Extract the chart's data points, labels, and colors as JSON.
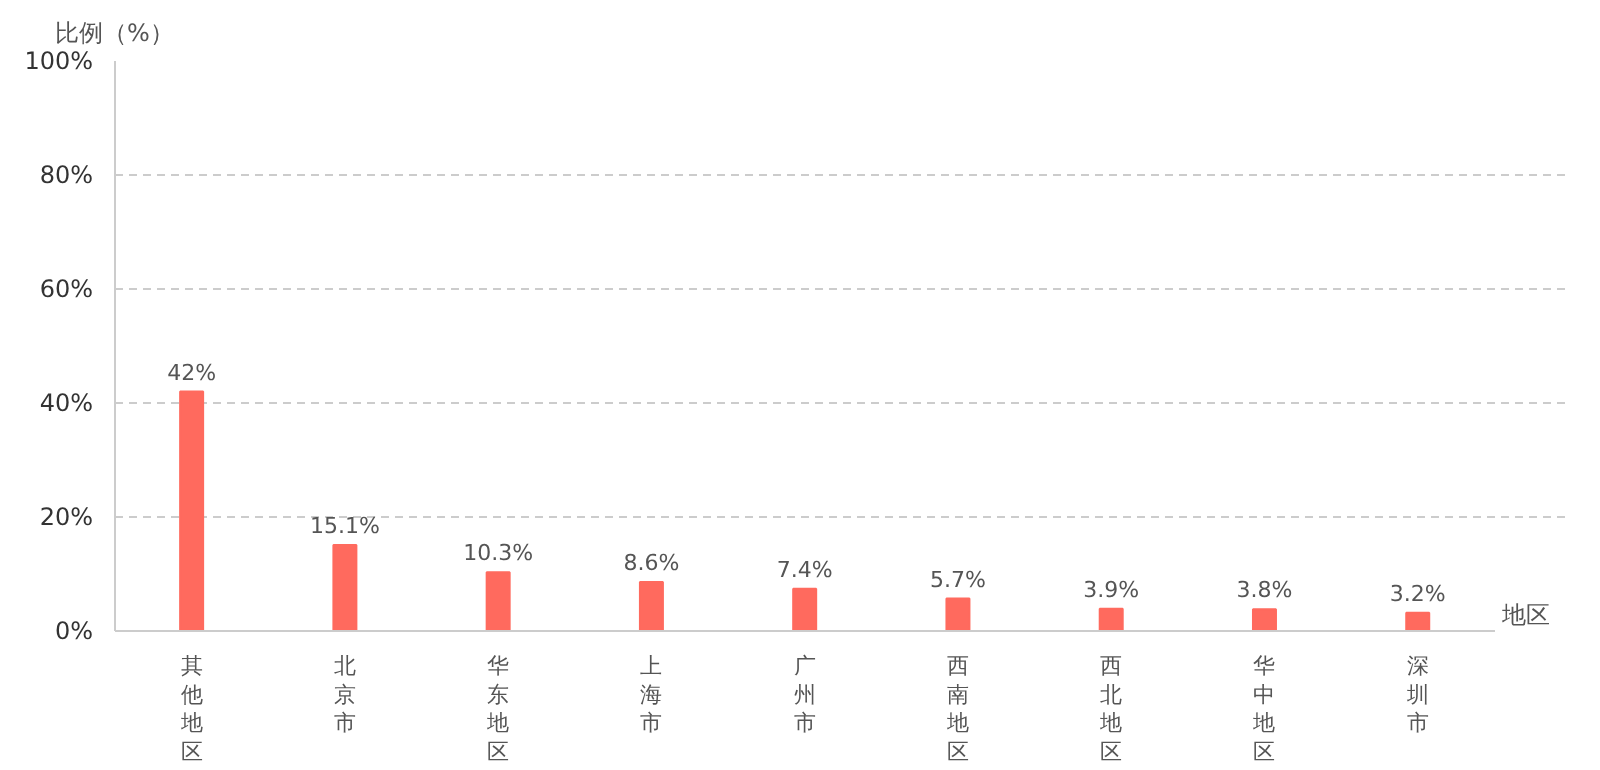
{
  "chart_data": {
    "type": "bar",
    "ylabel": "比例（%）",
    "xlabel": "地区",
    "categories": [
      "其他地区",
      "北京市",
      "华东地区",
      "上海市",
      "广州市",
      "西南地区",
      "西北地区",
      "华中地区",
      "深圳市"
    ],
    "values": [
      42,
      15.1,
      10.3,
      8.6,
      7.4,
      5.7,
      3.9,
      3.8,
      3.2
    ],
    "value_labels": [
      "42%",
      "15.1%",
      "10.3%",
      "8.6%",
      "7.4%",
      "5.7%",
      "3.9%",
      "3.8%",
      "3.2%"
    ],
    "color": "#ff6a5e",
    "ylim": [
      0,
      100
    ],
    "yticks": [
      {
        "value": 0,
        "label": "0%"
      },
      {
        "value": 20,
        "label": "20%"
      },
      {
        "value": 40,
        "label": "40%"
      },
      {
        "value": 60,
        "label": "60%"
      },
      {
        "value": 80,
        "label": "80%"
      },
      {
        "value": 100,
        "label": "100%"
      }
    ],
    "grid": "y"
  }
}
